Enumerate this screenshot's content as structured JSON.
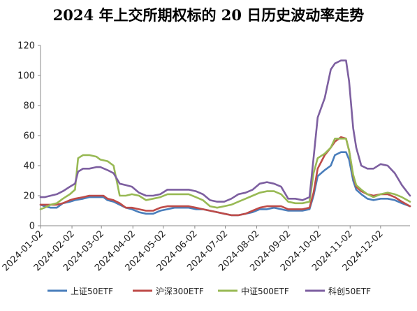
{
  "chart_data": {
    "type": "line",
    "title": "2024 年上交所期权标的 20 日历史波动率走势",
    "xlabel": "",
    "ylabel": "",
    "ylim": [
      0,
      120
    ],
    "yticks": [
      0,
      20,
      40,
      60,
      80,
      100,
      120
    ],
    "xlim": [
      "2024-01-02",
      "2024-12-31"
    ],
    "xticks": [
      "2024-01-02",
      "2024-02-02",
      "2024-03-02",
      "2024-04-02",
      "2024-05-02",
      "2024-06-02",
      "2024-07-02",
      "2024-08-02",
      "2024-09-02",
      "2024-10-02",
      "2024-11-02",
      "2024-12-02"
    ],
    "grid": false,
    "legend_position": "bottom",
    "series": [
      {
        "name": "上证50ETF",
        "color": "#4a7ebb",
        "points": [
          [
            "2024-01-02",
            14
          ],
          [
            "2024-01-06",
            13
          ],
          [
            "2024-01-12",
            12
          ],
          [
            "2024-01-18",
            12
          ],
          [
            "2024-01-24",
            15
          ],
          [
            "2024-01-31",
            16
          ],
          [
            "2024-02-05",
            17
          ],
          [
            "2024-02-13",
            18
          ],
          [
            "2024-02-19",
            19
          ],
          [
            "2024-02-26",
            19
          ],
          [
            "2024-03-04",
            19
          ],
          [
            "2024-03-08",
            17
          ],
          [
            "2024-03-14",
            16
          ],
          [
            "2024-03-20",
            14
          ],
          [
            "2024-03-26",
            12
          ],
          [
            "2024-04-01",
            11
          ],
          [
            "2024-04-08",
            9
          ],
          [
            "2024-04-15",
            8
          ],
          [
            "2024-04-22",
            8
          ],
          [
            "2024-04-29",
            10
          ],
          [
            "2024-05-06",
            11
          ],
          [
            "2024-05-13",
            12
          ],
          [
            "2024-05-20",
            12
          ],
          [
            "2024-05-27",
            12
          ],
          [
            "2024-06-03",
            11
          ],
          [
            "2024-06-10",
            11
          ],
          [
            "2024-06-17",
            10
          ],
          [
            "2024-06-24",
            9
          ],
          [
            "2024-07-01",
            8
          ],
          [
            "2024-07-08",
            7
          ],
          [
            "2024-07-15",
            7
          ],
          [
            "2024-07-22",
            8
          ],
          [
            "2024-07-29",
            9
          ],
          [
            "2024-08-05",
            11
          ],
          [
            "2024-08-12",
            11
          ],
          [
            "2024-08-19",
            12
          ],
          [
            "2024-08-26",
            11
          ],
          [
            "2024-09-02",
            10
          ],
          [
            "2024-09-09",
            10
          ],
          [
            "2024-09-16",
            10
          ],
          [
            "2024-09-23",
            11
          ],
          [
            "2024-09-27",
            20
          ],
          [
            "2024-10-01",
            33
          ],
          [
            "2024-10-08",
            37
          ],
          [
            "2024-10-14",
            40
          ],
          [
            "2024-10-18",
            47
          ],
          [
            "2024-10-24",
            49
          ],
          [
            "2024-10-29",
            49
          ],
          [
            "2024-11-01",
            44
          ],
          [
            "2024-11-05",
            30
          ],
          [
            "2024-11-08",
            24
          ],
          [
            "2024-11-13",
            21
          ],
          [
            "2024-11-19",
            18
          ],
          [
            "2024-11-25",
            17
          ],
          [
            "2024-12-02",
            18
          ],
          [
            "2024-12-09",
            18
          ],
          [
            "2024-12-16",
            17
          ],
          [
            "2024-12-23",
            15
          ],
          [
            "2024-12-31",
            13
          ]
        ]
      },
      {
        "name": "沪深300ETF",
        "color": "#be4b48",
        "points": [
          [
            "2024-01-02",
            14
          ],
          [
            "2024-01-06",
            14
          ],
          [
            "2024-01-12",
            14
          ],
          [
            "2024-01-18",
            14
          ],
          [
            "2024-01-24",
            15
          ],
          [
            "2024-01-31",
            17
          ],
          [
            "2024-02-05",
            18
          ],
          [
            "2024-02-13",
            19
          ],
          [
            "2024-02-19",
            20
          ],
          [
            "2024-02-26",
            20
          ],
          [
            "2024-03-04",
            20
          ],
          [
            "2024-03-08",
            18
          ],
          [
            "2024-03-14",
            17
          ],
          [
            "2024-03-20",
            15
          ],
          [
            "2024-03-26",
            12
          ],
          [
            "2024-04-01",
            12
          ],
          [
            "2024-04-08",
            11
          ],
          [
            "2024-04-15",
            10
          ],
          [
            "2024-04-22",
            10
          ],
          [
            "2024-04-29",
            12
          ],
          [
            "2024-05-06",
            13
          ],
          [
            "2024-05-13",
            13
          ],
          [
            "2024-05-20",
            13
          ],
          [
            "2024-05-27",
            13
          ],
          [
            "2024-06-03",
            12
          ],
          [
            "2024-06-10",
            11
          ],
          [
            "2024-06-17",
            10
          ],
          [
            "2024-06-24",
            9
          ],
          [
            "2024-07-01",
            8
          ],
          [
            "2024-07-08",
            7
          ],
          [
            "2024-07-15",
            7
          ],
          [
            "2024-07-22",
            8
          ],
          [
            "2024-07-29",
            10
          ],
          [
            "2024-08-05",
            12
          ],
          [
            "2024-08-12",
            13
          ],
          [
            "2024-08-19",
            13
          ],
          [
            "2024-08-26",
            13
          ],
          [
            "2024-09-02",
            11
          ],
          [
            "2024-09-09",
            11
          ],
          [
            "2024-09-16",
            11
          ],
          [
            "2024-09-23",
            12
          ],
          [
            "2024-09-27",
            22
          ],
          [
            "2024-10-01",
            38
          ],
          [
            "2024-10-08",
            47
          ],
          [
            "2024-10-14",
            52
          ],
          [
            "2024-10-18",
            56
          ],
          [
            "2024-10-24",
            59
          ],
          [
            "2024-10-29",
            58
          ],
          [
            "2024-11-01",
            50
          ],
          [
            "2024-11-05",
            33
          ],
          [
            "2024-11-08",
            26
          ],
          [
            "2024-11-13",
            23
          ],
          [
            "2024-11-19",
            21
          ],
          [
            "2024-11-25",
            20
          ],
          [
            "2024-12-02",
            21
          ],
          [
            "2024-12-09",
            21
          ],
          [
            "2024-12-16",
            19
          ],
          [
            "2024-12-23",
            16
          ],
          [
            "2024-12-31",
            13
          ]
        ]
      },
      {
        "name": "中证500ETF",
        "color": "#98b954",
        "points": [
          [
            "2024-01-02",
            11
          ],
          [
            "2024-01-06",
            12
          ],
          [
            "2024-01-12",
            14
          ],
          [
            "2024-01-18",
            15
          ],
          [
            "2024-01-24",
            18
          ],
          [
            "2024-01-31",
            21
          ],
          [
            "2024-02-05",
            24
          ],
          [
            "2024-02-08",
            45
          ],
          [
            "2024-02-13",
            47
          ],
          [
            "2024-02-19",
            47
          ],
          [
            "2024-02-26",
            46
          ],
          [
            "2024-03-01",
            44
          ],
          [
            "2024-03-08",
            43
          ],
          [
            "2024-03-14",
            40
          ],
          [
            "2024-03-20",
            20
          ],
          [
            "2024-03-26",
            20
          ],
          [
            "2024-04-01",
            21
          ],
          [
            "2024-04-08",
            20
          ],
          [
            "2024-04-15",
            17
          ],
          [
            "2024-04-22",
            18
          ],
          [
            "2024-04-29",
            19
          ],
          [
            "2024-05-06",
            21
          ],
          [
            "2024-05-13",
            21
          ],
          [
            "2024-05-20",
            21
          ],
          [
            "2024-05-27",
            21
          ],
          [
            "2024-06-03",
            19
          ],
          [
            "2024-06-10",
            17
          ],
          [
            "2024-06-17",
            13
          ],
          [
            "2024-06-24",
            12
          ],
          [
            "2024-07-01",
            13
          ],
          [
            "2024-07-08",
            14
          ],
          [
            "2024-07-15",
            16
          ],
          [
            "2024-07-22",
            18
          ],
          [
            "2024-07-29",
            20
          ],
          [
            "2024-08-05",
            22
          ],
          [
            "2024-08-12",
            23
          ],
          [
            "2024-08-19",
            23
          ],
          [
            "2024-08-26",
            21
          ],
          [
            "2024-09-02",
            16
          ],
          [
            "2024-09-09",
            15
          ],
          [
            "2024-09-16",
            15
          ],
          [
            "2024-09-23",
            16
          ],
          [
            "2024-09-27",
            35
          ],
          [
            "2024-10-01",
            45
          ],
          [
            "2024-10-08",
            48
          ],
          [
            "2024-10-14",
            52
          ],
          [
            "2024-10-18",
            58
          ],
          [
            "2024-10-24",
            58
          ],
          [
            "2024-10-29",
            58
          ],
          [
            "2024-11-01",
            50
          ],
          [
            "2024-11-05",
            34
          ],
          [
            "2024-11-08",
            27
          ],
          [
            "2024-11-13",
            24
          ],
          [
            "2024-11-19",
            21
          ],
          [
            "2024-11-25",
            19
          ],
          [
            "2024-12-02",
            21
          ],
          [
            "2024-12-09",
            22
          ],
          [
            "2024-12-16",
            21
          ],
          [
            "2024-12-23",
            19
          ],
          [
            "2024-12-31",
            16
          ]
        ]
      },
      {
        "name": "科创50ETF",
        "color": "#7d5fa0",
        "points": [
          [
            "2024-01-02",
            19
          ],
          [
            "2024-01-06",
            19
          ],
          [
            "2024-01-12",
            20
          ],
          [
            "2024-01-18",
            21
          ],
          [
            "2024-01-24",
            23
          ],
          [
            "2024-01-31",
            26
          ],
          [
            "2024-02-05",
            28
          ],
          [
            "2024-02-08",
            36
          ],
          [
            "2024-02-13",
            38
          ],
          [
            "2024-02-19",
            38
          ],
          [
            "2024-02-26",
            39
          ],
          [
            "2024-03-01",
            39
          ],
          [
            "2024-03-08",
            37
          ],
          [
            "2024-03-14",
            35
          ],
          [
            "2024-03-20",
            28
          ],
          [
            "2024-03-26",
            27
          ],
          [
            "2024-04-01",
            26
          ],
          [
            "2024-04-08",
            22
          ],
          [
            "2024-04-15",
            20
          ],
          [
            "2024-04-22",
            20
          ],
          [
            "2024-04-29",
            21
          ],
          [
            "2024-05-06",
            24
          ],
          [
            "2024-05-13",
            24
          ],
          [
            "2024-05-20",
            24
          ],
          [
            "2024-05-27",
            24
          ],
          [
            "2024-06-03",
            23
          ],
          [
            "2024-06-10",
            21
          ],
          [
            "2024-06-17",
            17
          ],
          [
            "2024-06-24",
            16
          ],
          [
            "2024-07-01",
            16
          ],
          [
            "2024-07-08",
            18
          ],
          [
            "2024-07-15",
            21
          ],
          [
            "2024-07-22",
            22
          ],
          [
            "2024-07-29",
            24
          ],
          [
            "2024-08-05",
            28
          ],
          [
            "2024-08-12",
            29
          ],
          [
            "2024-08-19",
            28
          ],
          [
            "2024-08-26",
            26
          ],
          [
            "2024-09-02",
            18
          ],
          [
            "2024-09-09",
            18
          ],
          [
            "2024-09-16",
            17
          ],
          [
            "2024-09-23",
            19
          ],
          [
            "2024-09-27",
            45
          ],
          [
            "2024-10-01",
            72
          ],
          [
            "2024-10-08",
            85
          ],
          [
            "2024-10-14",
            104
          ],
          [
            "2024-10-18",
            108
          ],
          [
            "2024-10-24",
            110
          ],
          [
            "2024-10-29",
            110
          ],
          [
            "2024-11-01",
            96
          ],
          [
            "2024-11-05",
            65
          ],
          [
            "2024-11-08",
            52
          ],
          [
            "2024-11-13",
            40
          ],
          [
            "2024-11-19",
            38
          ],
          [
            "2024-11-25",
            38
          ],
          [
            "2024-12-02",
            41
          ],
          [
            "2024-12-09",
            40
          ],
          [
            "2024-12-16",
            35
          ],
          [
            "2024-12-23",
            27
          ],
          [
            "2024-12-31",
            20
          ]
        ]
      }
    ]
  }
}
